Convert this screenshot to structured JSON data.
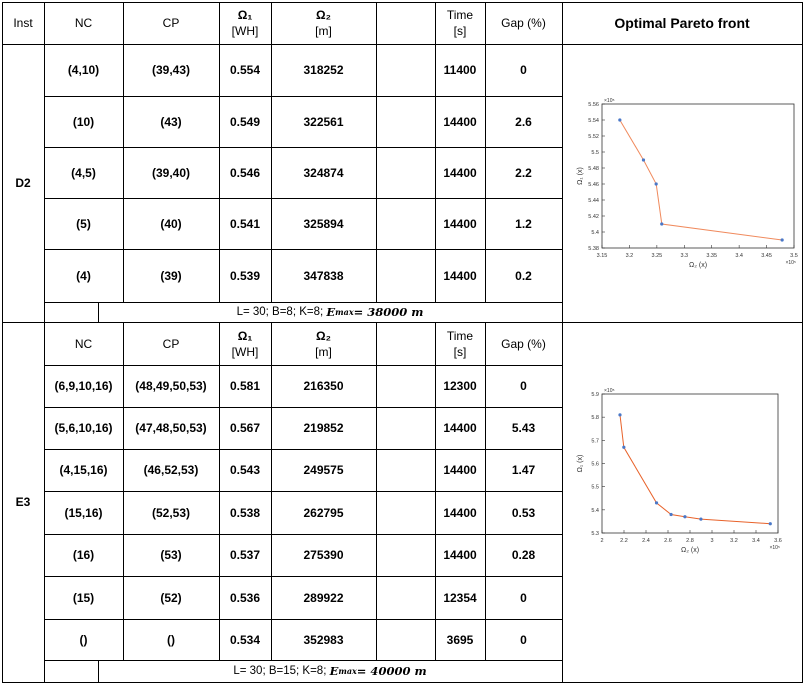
{
  "header": {
    "inst": "Inst",
    "nc": "NC",
    "cp": "CP",
    "o1": "Ω₁",
    "o1u": "[WH]",
    "o2": "Ω₂",
    "o2u": "[m]",
    "time": "Time",
    "timeu": "[s]",
    "gap": "Gap (%)",
    "front": "Optimal Pareto front"
  },
  "d2": {
    "name": "D2",
    "rows": [
      {
        "nc": "(4,10)",
        "cp": "(39,43)",
        "o1": "0.554",
        "o2": "318252",
        "time": "11400",
        "gap": "0"
      },
      {
        "nc": "(10)",
        "cp": "(43)",
        "o1": "0.549",
        "o2": "322561",
        "time": "14400",
        "gap": "2.6"
      },
      {
        "nc": "(4,5)",
        "cp": "(39,40)",
        "o1": "0.546",
        "o2": "324874",
        "time": "14400",
        "gap": "2.2"
      },
      {
        "nc": "(5)",
        "cp": "(40)",
        "o1": "0.541",
        "o2": "325894",
        "time": "14400",
        "gap": "1.2"
      },
      {
        "nc": "(4)",
        "cp": "(39)",
        "o1": "0.539",
        "o2": "347838",
        "time": "14400",
        "gap": "0.2"
      }
    ],
    "footer_params": "L= 30; B=8; K=8;",
    "footer_emax_label": "E",
    "footer_emax_sup": "max",
    "footer_emax_value": " = 38000 m"
  },
  "e3": {
    "name": "E3",
    "subheader": {
      "nc": "NC",
      "cp": "CP",
      "o1": "Ω₁",
      "o1u": "[WH]",
      "o2": "Ω₂",
      "o2u": "[m]",
      "time": "Time",
      "timeu": "[s]",
      "gap": "Gap (%)"
    },
    "rows": [
      {
        "nc": "(6,9,10,16)",
        "cp": "(48,49,50,53)",
        "o1": "0.581",
        "o2": "216350",
        "time": "12300",
        "gap": "0"
      },
      {
        "nc": "(5,6,10,16)",
        "cp": "(47,48,50,53)",
        "o1": "0.567",
        "o2": "219852",
        "time": "14400",
        "gap": "5.43"
      },
      {
        "nc": "(4,15,16)",
        "cp": "(46,52,53)",
        "o1": "0.543",
        "o2": "249575",
        "time": "14400",
        "gap": "1.47"
      },
      {
        "nc": "(15,16)",
        "cp": "(52,53)",
        "o1": "0.538",
        "o2": "262795",
        "time": "14400",
        "gap": "0.53"
      },
      {
        "nc": "(16)",
        "cp": "(53)",
        "o1": "0.537",
        "o2": "275390",
        "time": "14400",
        "gap": "0.28"
      },
      {
        "nc": "(15)",
        "cp": "(52)",
        "o1": "0.536",
        "o2": "289922",
        "time": "12354",
        "gap": "0"
      },
      {
        "nc": "()",
        "cp": "()",
        "o1": "0.534",
        "o2": "352983",
        "time": "3695",
        "gap": "0"
      }
    ],
    "footer_params": "L= 30; B=15; K=8;",
    "footer_emax_label": "E",
    "footer_emax_sup": "max",
    "footer_emax_value": " = 40000 m"
  },
  "chart_data": [
    {
      "type": "line",
      "xlabel": "Ω₂ (x)",
      "ylabel": "Ω₁ (x)",
      "x_exponent": "×10⁵",
      "y_exponent": "×10⁵",
      "xlim": [
        3.15,
        3.5
      ],
      "ylim": [
        5.38,
        5.56
      ],
      "xticks": [
        "3.15",
        "3.2",
        "3.25",
        "3.3",
        "3.35",
        "3.4",
        "3.45",
        "3.5"
      ],
      "yticks": [
        "5.38",
        "5.4",
        "5.42",
        "5.44",
        "5.46",
        "5.48",
        "5.5",
        "5.52",
        "5.54",
        "5.56"
      ],
      "x": [
        3.18252,
        3.22561,
        3.24874,
        3.25894,
        3.47838
      ],
      "y": [
        5.54,
        5.49,
        5.46,
        5.41,
        5.39
      ],
      "line_color": "#f08a5d",
      "marker_color": "#4a78c8"
    },
    {
      "type": "line",
      "xlabel": "Ω₂ (x)",
      "ylabel": "Ω₁ (x)",
      "x_exponent": "×10⁵",
      "y_exponent": "×10⁵",
      "xlim": [
        2.0,
        3.6
      ],
      "ylim": [
        5.3,
        5.9
      ],
      "xticks": [
        "2",
        "2.2",
        "2.4",
        "2.6",
        "2.8",
        "3",
        "3.2",
        "3.4",
        "3.6"
      ],
      "yticks": [
        "5.3",
        "5.4",
        "5.5",
        "5.6",
        "5.7",
        "5.8",
        "5.9"
      ],
      "x": [
        2.1635,
        2.19852,
        2.49575,
        2.62795,
        2.7539,
        2.89922,
        3.52983
      ],
      "y": [
        5.81,
        5.67,
        5.43,
        5.38,
        5.37,
        5.36,
        5.34
      ],
      "line_color": "#e8622a",
      "marker_color": "#4a78c8"
    }
  ]
}
